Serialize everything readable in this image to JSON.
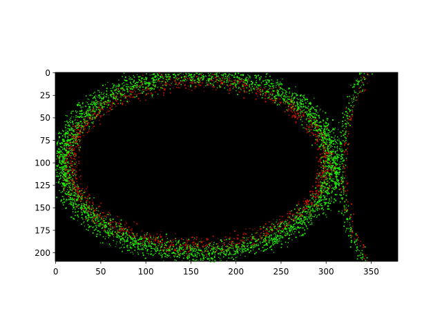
{
  "chart_data": {
    "type": "image",
    "description_kind": "microscopy image shown with imshow",
    "x_ticks": [
      0,
      50,
      100,
      150,
      200,
      250,
      300,
      350
    ],
    "y_ticks": [
      0,
      25,
      50,
      75,
      100,
      125,
      150,
      175,
      200
    ],
    "xlim": [
      -0.5,
      379.5
    ],
    "ylim": [
      209.5,
      -0.5
    ],
    "image_size": {
      "width": 380,
      "height": 210
    },
    "background_color": "#000000",
    "channels": [
      {
        "name": "green",
        "color": "#22ee00"
      },
      {
        "name": "red",
        "color": "#cc1100"
      }
    ],
    "rings": [
      {
        "name": "left-ellipse",
        "cx": 157,
        "cy": 100,
        "rx": 150,
        "ry": 99,
        "thickness": 14,
        "density": 0.9
      },
      {
        "name": "right-arc",
        "cx": 560,
        "cy": 105,
        "rx": 245,
        "ry": 230,
        "thickness": 7,
        "density": 0.45
      }
    ],
    "title": "",
    "xlabel": "",
    "ylabel": ""
  }
}
